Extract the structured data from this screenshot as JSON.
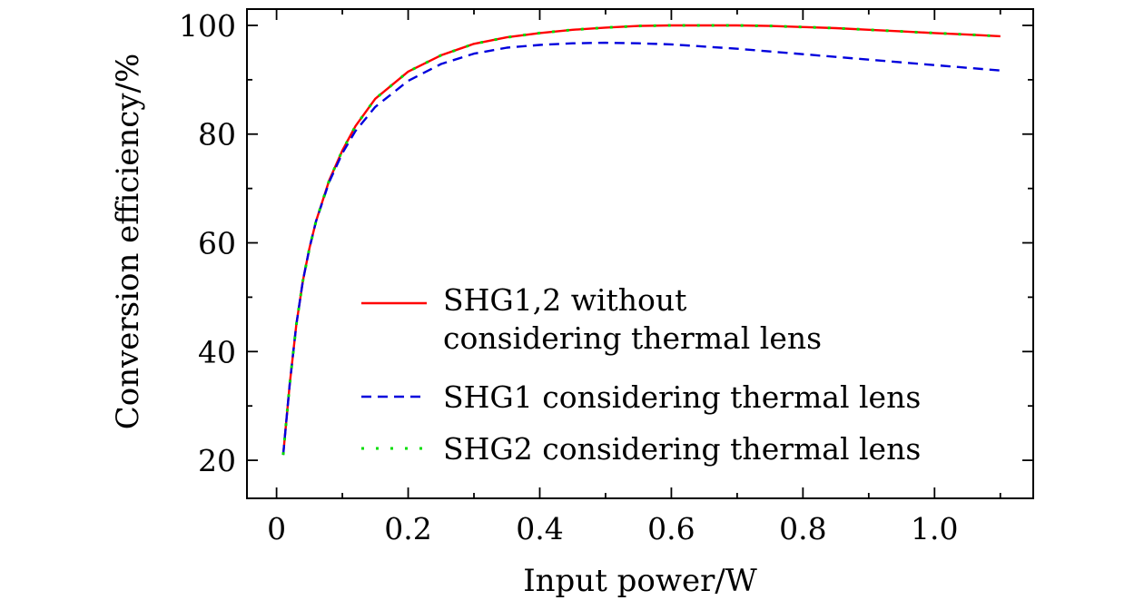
{
  "chart_data": {
    "type": "line",
    "xlabel": "Input power/W",
    "ylabel": "Conversion efficiency/%",
    "xlim": [
      -0.045,
      1.15
    ],
    "ylim": [
      13,
      103
    ],
    "xticks": [
      0,
      0.2,
      0.4,
      0.6,
      0.8,
      1.0
    ],
    "xtick_labels": [
      "0",
      "0.2",
      "0.4",
      "0.6",
      "0.8",
      "1.0"
    ],
    "x_minor_ticks": [
      0.1,
      0.3,
      0.5,
      0.7,
      0.9,
      1.1
    ],
    "yticks": [
      20,
      40,
      60,
      80,
      100
    ],
    "ytick_labels": [
      "20",
      "40",
      "60",
      "80",
      "100"
    ],
    "y_minor_ticks": [
      30,
      50,
      70,
      90
    ],
    "grid": false,
    "legend_position": "lower-right",
    "series": [
      {
        "name": "SHG1,2 without considering thermal lens",
        "legend_lines": [
          "SHG1,2 without",
          "considering thermal lens"
        ],
        "color": "#ff0000",
        "style": "solid",
        "x": [
          0.01,
          0.02,
          0.03,
          0.04,
          0.05,
          0.06,
          0.08,
          0.1,
          0.12,
          0.15,
          0.2,
          0.25,
          0.3,
          0.35,
          0.4,
          0.45,
          0.5,
          0.55,
          0.6,
          0.65,
          0.7,
          0.75,
          0.8,
          0.85,
          0.9,
          0.95,
          1.0,
          1.05,
          1.1
        ],
        "y": [
          21,
          34,
          45,
          53,
          59,
          64,
          71.5,
          77,
          81.5,
          86.5,
          91.5,
          94.5,
          96.6,
          97.8,
          98.6,
          99.2,
          99.6,
          99.9,
          100,
          100,
          100,
          99.9,
          99.7,
          99.5,
          99.2,
          98.9,
          98.6,
          98.3,
          98
        ]
      },
      {
        "name": "SHG1 considering thermal lens",
        "legend_lines": [
          "SHG1 considering thermal lens"
        ],
        "color": "#0000dd",
        "style": "dashed",
        "x": [
          0.01,
          0.02,
          0.03,
          0.04,
          0.05,
          0.06,
          0.08,
          0.1,
          0.12,
          0.15,
          0.2,
          0.25,
          0.3,
          0.35,
          0.4,
          0.45,
          0.5,
          0.55,
          0.6,
          0.65,
          0.7,
          0.75,
          0.8,
          0.85,
          0.9,
          0.95,
          1.0,
          1.05,
          1.1
        ],
        "y": [
          21,
          34,
          45,
          53,
          59,
          64,
          71.2,
          76.5,
          80.6,
          85,
          89.8,
          92.9,
          94.8,
          95.9,
          96.4,
          96.7,
          96.8,
          96.7,
          96.5,
          96.1,
          95.7,
          95.2,
          94.7,
          94.2,
          93.7,
          93.2,
          92.7,
          92.2,
          91.7
        ]
      },
      {
        "name": "SHG2 considering thermal lens",
        "legend_lines": [
          "SHG2 considering thermal lens"
        ],
        "color": "#00dd00",
        "style": "dotted",
        "x": [
          0.01,
          0.02,
          0.03,
          0.04,
          0.05,
          0.06,
          0.08,
          0.1,
          0.12,
          0.15,
          0.2,
          0.25,
          0.3,
          0.35,
          0.4,
          0.45,
          0.5,
          0.55,
          0.6,
          0.65,
          0.7,
          0.75,
          0.8,
          0.85,
          0.9,
          0.95,
          1.0,
          1.05,
          1.1
        ],
        "y": [
          21,
          34,
          45,
          53,
          59,
          64,
          71.5,
          77,
          81.5,
          86.5,
          91.5,
          94.5,
          96.6,
          97.8,
          98.6,
          99.2,
          99.6,
          99.9,
          100,
          100,
          100,
          99.9,
          99.7,
          99.5,
          99.2,
          98.9,
          98.6,
          98.3,
          98
        ]
      }
    ]
  }
}
